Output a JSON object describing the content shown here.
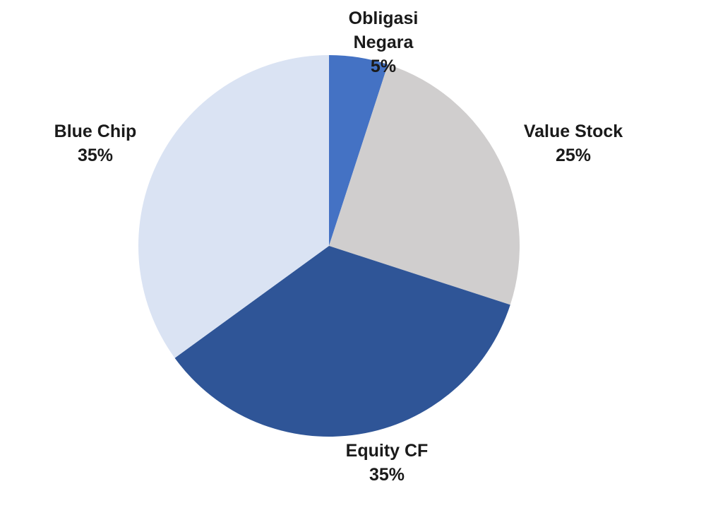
{
  "chart_data": {
    "type": "pie",
    "categories": [
      "Obligasi Negara",
      "Value Stock",
      "Equity CF",
      "Blue Chip"
    ],
    "values": [
      5,
      25,
      35,
      35
    ],
    "value_labels": [
      "5%",
      "25%",
      "35%",
      "35%"
    ],
    "colors": [
      "#4472c4",
      "#d0cece",
      "#2f5597",
      "#dae3f3"
    ]
  }
}
